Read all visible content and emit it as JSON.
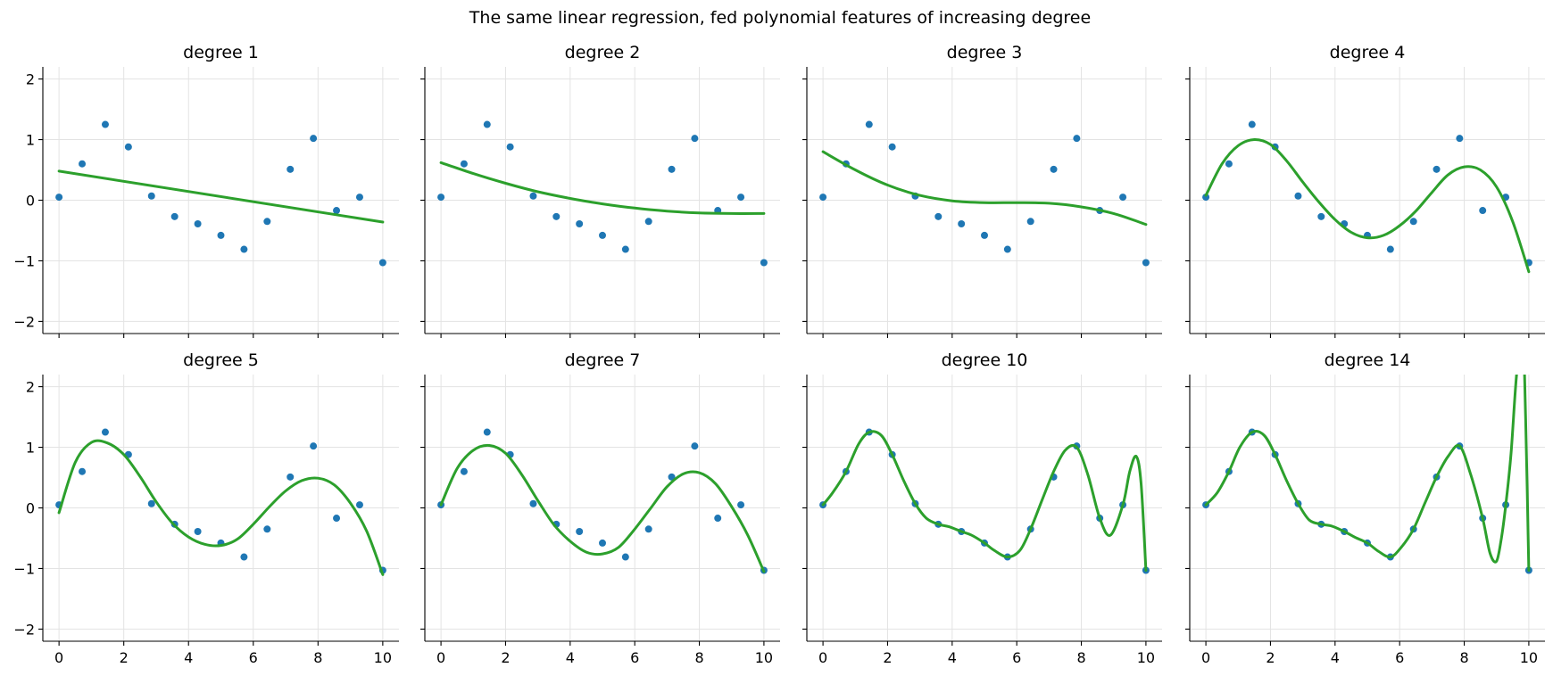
{
  "figure": {
    "title": "The same linear regression, fed polynomial features of increasing degree"
  },
  "chart_data": {
    "type": "scatter",
    "layout": "2x4 grid, shared axes",
    "xlim": [
      -0.5,
      10.5
    ],
    "ylim": [
      -2.2,
      2.2
    ],
    "xticks": [
      0,
      2,
      4,
      6,
      8,
      10
    ],
    "yticks": [
      -2,
      -1,
      0,
      1,
      2
    ],
    "xtick_labels": [
      "0",
      "2",
      "4",
      "6",
      "8",
      "10"
    ],
    "ytick_labels": [
      "−2",
      "−1",
      "0",
      "1",
      "2"
    ],
    "grid": true,
    "colors": {
      "points": "#1f77b4",
      "fit": "#2ca02c"
    },
    "points": {
      "x": [
        0,
        0.714,
        1.429,
        2.143,
        2.857,
        3.571,
        4.286,
        5.0,
        5.714,
        6.429,
        7.143,
        7.857,
        8.571,
        9.286,
        10.0
      ],
      "y": [
        0.05,
        0.6,
        1.25,
        0.88,
        0.07,
        -0.27,
        -0.39,
        -0.58,
        -0.81,
        -0.35,
        0.51,
        1.02,
        -0.17,
        0.05,
        -1.03
      ]
    },
    "panels": [
      {
        "title": "degree 1",
        "fit_x": [
          0,
          10
        ],
        "fit_y": [
          0.48,
          -0.36
        ]
      },
      {
        "title": "degree 2",
        "fit_x": [
          0,
          1,
          2,
          3,
          4,
          5,
          6,
          7,
          8,
          9,
          10
        ],
        "fit_y": [
          0.62,
          0.44,
          0.28,
          0.14,
          0.03,
          -0.06,
          -0.13,
          -0.18,
          -0.21,
          -0.22,
          -0.22
        ]
      },
      {
        "title": "degree 3",
        "fit_x": [
          0,
          1,
          2,
          3,
          4,
          5,
          6,
          7,
          8,
          9,
          10
        ],
        "fit_y": [
          0.8,
          0.5,
          0.25,
          0.08,
          -0.01,
          -0.04,
          -0.04,
          -0.05,
          -0.11,
          -0.22,
          -0.4
        ]
      },
      {
        "title": "degree 4",
        "fit_x": [
          0,
          0.5,
          1,
          1.5,
          2,
          2.5,
          3,
          3.5,
          4,
          4.5,
          5,
          5.5,
          6,
          6.5,
          7,
          7.5,
          8,
          8.5,
          9,
          9.5,
          10
        ],
        "fit_y": [
          0.08,
          0.6,
          0.9,
          1.0,
          0.92,
          0.65,
          0.3,
          -0.03,
          -0.32,
          -0.53,
          -0.62,
          -0.58,
          -0.42,
          -0.18,
          0.13,
          0.42,
          0.55,
          0.5,
          0.22,
          -0.35,
          -1.18
        ]
      },
      {
        "title": "degree 5",
        "fit_x": [
          0,
          0.5,
          1,
          1.5,
          2,
          2.5,
          3,
          3.5,
          4,
          4.5,
          5,
          5.5,
          6,
          6.5,
          7,
          7.5,
          8,
          8.5,
          9,
          9.5,
          10
        ],
        "fit_y": [
          -0.08,
          0.75,
          1.08,
          1.07,
          0.88,
          0.52,
          0.1,
          -0.25,
          -0.48,
          -0.6,
          -0.62,
          -0.52,
          -0.27,
          0.02,
          0.28,
          0.45,
          0.49,
          0.38,
          0.08,
          -0.38,
          -1.1
        ]
      },
      {
        "title": "degree 7",
        "fit_x": [
          0,
          0.5,
          1,
          1.5,
          2,
          2.5,
          3,
          3.5,
          4,
          4.5,
          5,
          5.5,
          6,
          6.5,
          7,
          7.5,
          8,
          8.5,
          9,
          9.5,
          10
        ],
        "fit_y": [
          0.05,
          0.65,
          0.95,
          1.03,
          0.9,
          0.55,
          0.12,
          -0.28,
          -0.55,
          -0.73,
          -0.76,
          -0.65,
          -0.35,
          0.0,
          0.35,
          0.56,
          0.58,
          0.4,
          0.02,
          -0.45,
          -1.05
        ]
      },
      {
        "title": "degree 10",
        "fit_x": [
          0,
          0.3,
          0.714,
          1.1,
          1.429,
          1.8,
          2.143,
          2.5,
          2.857,
          3.2,
          3.571,
          3.9,
          4.286,
          4.6,
          5.0,
          5.3,
          5.714,
          6.1,
          6.429,
          6.8,
          7.143,
          7.5,
          7.857,
          8.2,
          8.571,
          8.9,
          9.286,
          9.5,
          9.7,
          9.85,
          10.0
        ],
        "fit_y": [
          0.05,
          0.25,
          0.6,
          1.05,
          1.25,
          1.2,
          0.88,
          0.45,
          0.07,
          -0.17,
          -0.27,
          -0.31,
          -0.39,
          -0.45,
          -0.58,
          -0.7,
          -0.81,
          -0.7,
          -0.35,
          0.15,
          0.6,
          0.95,
          1.0,
          0.55,
          -0.17,
          -0.45,
          0.05,
          0.6,
          0.85,
          0.4,
          -1.03
        ]
      },
      {
        "title": "degree 14",
        "fit_x": [
          0,
          0.35,
          0.714,
          1.05,
          1.429,
          1.8,
          2.143,
          2.5,
          2.857,
          3.2,
          3.571,
          3.9,
          4.286,
          4.6,
          5.0,
          5.35,
          5.714,
          6.05,
          6.429,
          6.8,
          7.143,
          7.5,
          7.857,
          8.2,
          8.571,
          8.8,
          9.0,
          9.15,
          9.286,
          9.45,
          9.62,
          9.8,
          9.9,
          10.0
        ],
        "fit_y": [
          0.05,
          0.25,
          0.6,
          1.0,
          1.25,
          1.2,
          0.88,
          0.45,
          0.07,
          -0.2,
          -0.27,
          -0.3,
          -0.39,
          -0.48,
          -0.58,
          -0.72,
          -0.81,
          -0.65,
          -0.35,
          0.1,
          0.51,
          0.85,
          1.02,
          0.55,
          -0.17,
          -0.75,
          -0.88,
          -0.5,
          0.05,
          0.9,
          2.2,
          3.0,
          1.5,
          -1.03
        ]
      }
    ]
  }
}
